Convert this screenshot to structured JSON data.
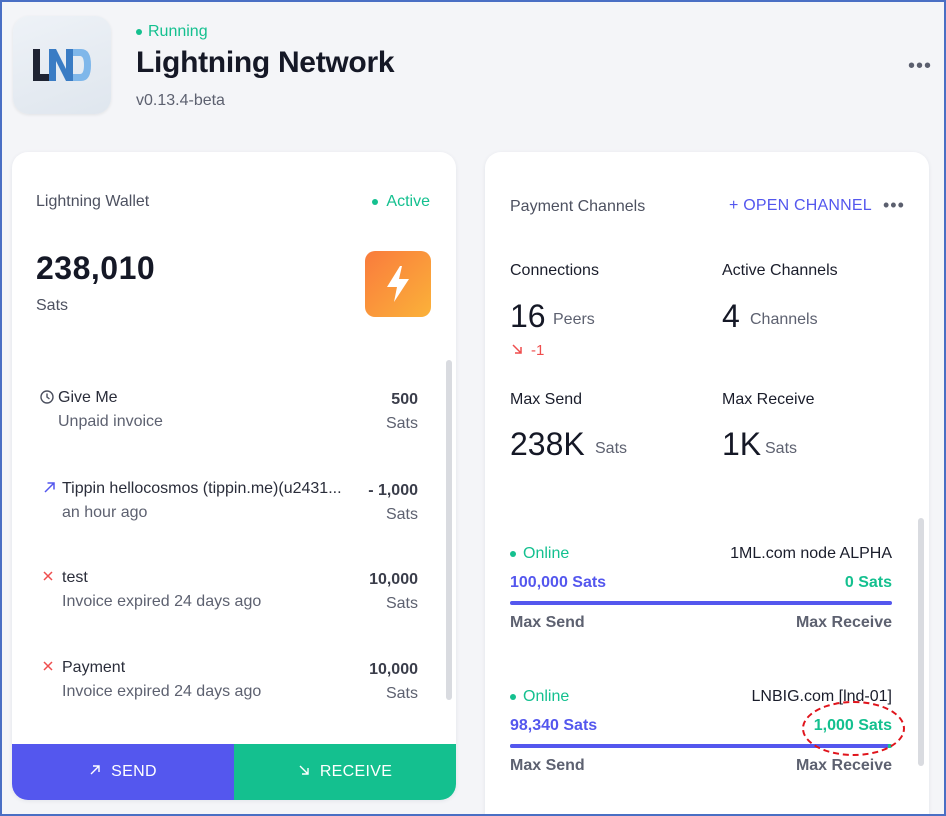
{
  "header": {
    "status": "Running",
    "title": "Lightning Network",
    "version": "v0.13.4-beta",
    "logo_icon": "lnd-logo-icon",
    "more_icon": "more-horizontal-icon"
  },
  "wallet": {
    "label": "Lightning Wallet",
    "status": "Active",
    "balance": "238,010",
    "balance_unit": "Sats",
    "transactions": [
      {
        "icon": "clock-icon",
        "title": "Give Me",
        "subtitle": "Unpaid invoice",
        "amount": "500",
        "unit": "Sats"
      },
      {
        "icon": "arrow-up-right-icon",
        "title": "Tippin hellocosmos (tippin.me)(u2431...",
        "subtitle": "an hour ago",
        "amount": "- 1,000",
        "unit": "Sats"
      },
      {
        "icon": "x-icon",
        "title": "test",
        "subtitle": "Invoice expired 24 days ago",
        "amount": "10,000",
        "unit": "Sats"
      },
      {
        "icon": "x-icon",
        "title": "Payment",
        "subtitle": "Invoice expired 24 days ago",
        "amount": "10,000",
        "unit": "Sats"
      }
    ],
    "send_label": "SEND",
    "receive_label": "RECEIVE"
  },
  "channels": {
    "title": "Payment Channels",
    "open_channel": "+ OPEN CHANNEL",
    "connections": {
      "label": "Connections",
      "value": "16",
      "unit": "Peers",
      "delta": "-1"
    },
    "active_channels": {
      "label": "Active Channels",
      "value": "4",
      "unit": "Channels"
    },
    "max_send": {
      "label": "Max Send",
      "value": "238K",
      "unit": "Sats"
    },
    "max_receive": {
      "label": "Max Receive",
      "value": "1K",
      "unit": "Sats"
    },
    "list": [
      {
        "status": "Online",
        "node": "1ML.com node ALPHA",
        "send": "100,000 Sats",
        "receive": "0 Sats",
        "send_fraction": 1.0,
        "send_label": "Max Send",
        "receive_label": "Max Receive"
      },
      {
        "status": "Online",
        "node": "LNBIG.com [lnd-01]",
        "send": "98,340 Sats",
        "receive": "1,000 Sats",
        "send_fraction": 0.99,
        "send_label": "Max Send",
        "receive_label": "Max Receive"
      }
    ]
  },
  "colors": {
    "accent": "#5457ee",
    "success": "#14c08f",
    "danger": "#ef4d4d",
    "annotation": "#e0141c"
  }
}
